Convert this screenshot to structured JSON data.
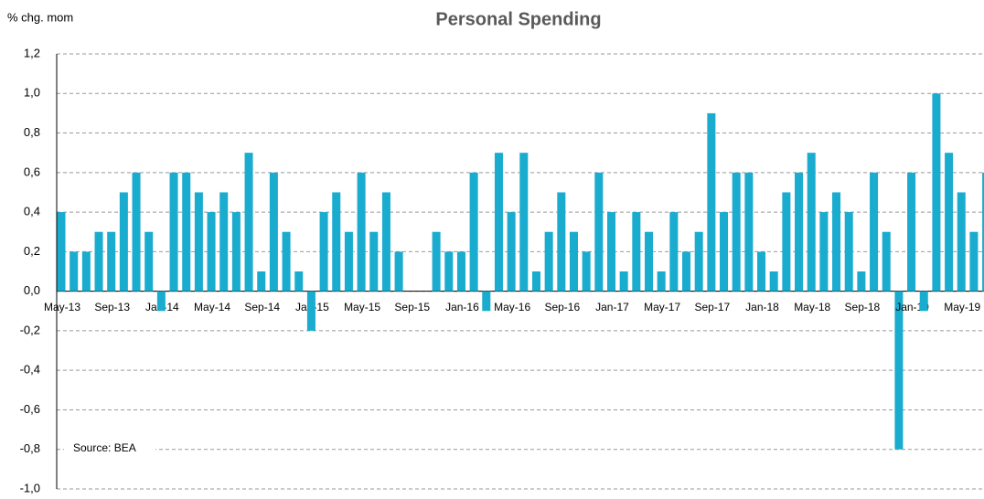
{
  "chart_data": {
    "type": "bar",
    "title": "Personal Spending",
    "y_label": "% chg. mom",
    "source": "Source: BEA",
    "categories": [
      "May-13",
      null,
      null,
      null,
      "Sep-13",
      null,
      null,
      null,
      "Jan-14",
      null,
      null,
      null,
      "May-14",
      null,
      null,
      null,
      "Sep-14",
      null,
      null,
      null,
      "Jan-15",
      null,
      null,
      null,
      "May-15",
      null,
      null,
      null,
      "Sep-15",
      null,
      null,
      null,
      "Jan-16",
      null,
      null,
      null,
      "May-16",
      null,
      null,
      null,
      "Sep-16",
      null,
      null,
      null,
      "Jan-17",
      null,
      null,
      null,
      "May-17",
      null,
      null,
      null,
      "Sep-17",
      null,
      null,
      null,
      "Jan-18",
      null,
      null,
      null,
      "May-18",
      null,
      null,
      null,
      "Sep-18",
      null,
      null,
      null,
      "Jan-19",
      null,
      null,
      null,
      "May-19",
      null,
      null
    ],
    "values": [
      0.4,
      0.2,
      0.2,
      0.3,
      0.3,
      0.5,
      0.6,
      0.3,
      -0.1,
      0.6,
      0.6,
      0.5,
      0.4,
      0.5,
      0.4,
      0.7,
      0.1,
      0.6,
      0.3,
      0.1,
      -0.2,
      0.4,
      0.5,
      0.3,
      0.6,
      0.3,
      0.5,
      0.2,
      0,
      0,
      0.3,
      0.2,
      0.2,
      0.6,
      -0.1,
      0.7,
      0.4,
      0.7,
      0.1,
      0.3,
      0.5,
      0.3,
      0.2,
      0.6,
      0.4,
      0.1,
      0.4,
      0.3,
      0.1,
      0.4,
      0.2,
      0.3,
      0.9,
      0.4,
      0.6,
      0.6,
      0.2,
      0.1,
      0.5,
      0.6,
      0.7,
      0.4,
      0.5,
      0.4,
      0.1,
      0.6,
      0.3,
      -0.8,
      0.6,
      -0.1,
      1.0,
      0.7,
      0.5,
      0.3,
      0.6
    ],
    "color": "#1aaccf",
    "ylim": [
      -1.0,
      1.2
    ],
    "yticks": [
      {
        "value": -1.0,
        "label": "-1,0"
      },
      {
        "value": -0.8,
        "label": "-0,8"
      },
      {
        "value": -0.6,
        "label": "-0,6"
      },
      {
        "value": -0.4,
        "label": "-0,4"
      },
      {
        "value": -0.2,
        "label": "-0,2"
      },
      {
        "value": 0,
        "label": "0,0"
      },
      {
        "value": 0.2,
        "label": "0,2"
      },
      {
        "value": 0.4,
        "label": "0,4"
      },
      {
        "value": 0.6,
        "label": "0,6"
      },
      {
        "value": 0.8,
        "label": "0,8"
      },
      {
        "value": 1.0,
        "label": "1,0"
      },
      {
        "value": 1.2,
        "label": "1,2"
      }
    ],
    "grid": true
  }
}
